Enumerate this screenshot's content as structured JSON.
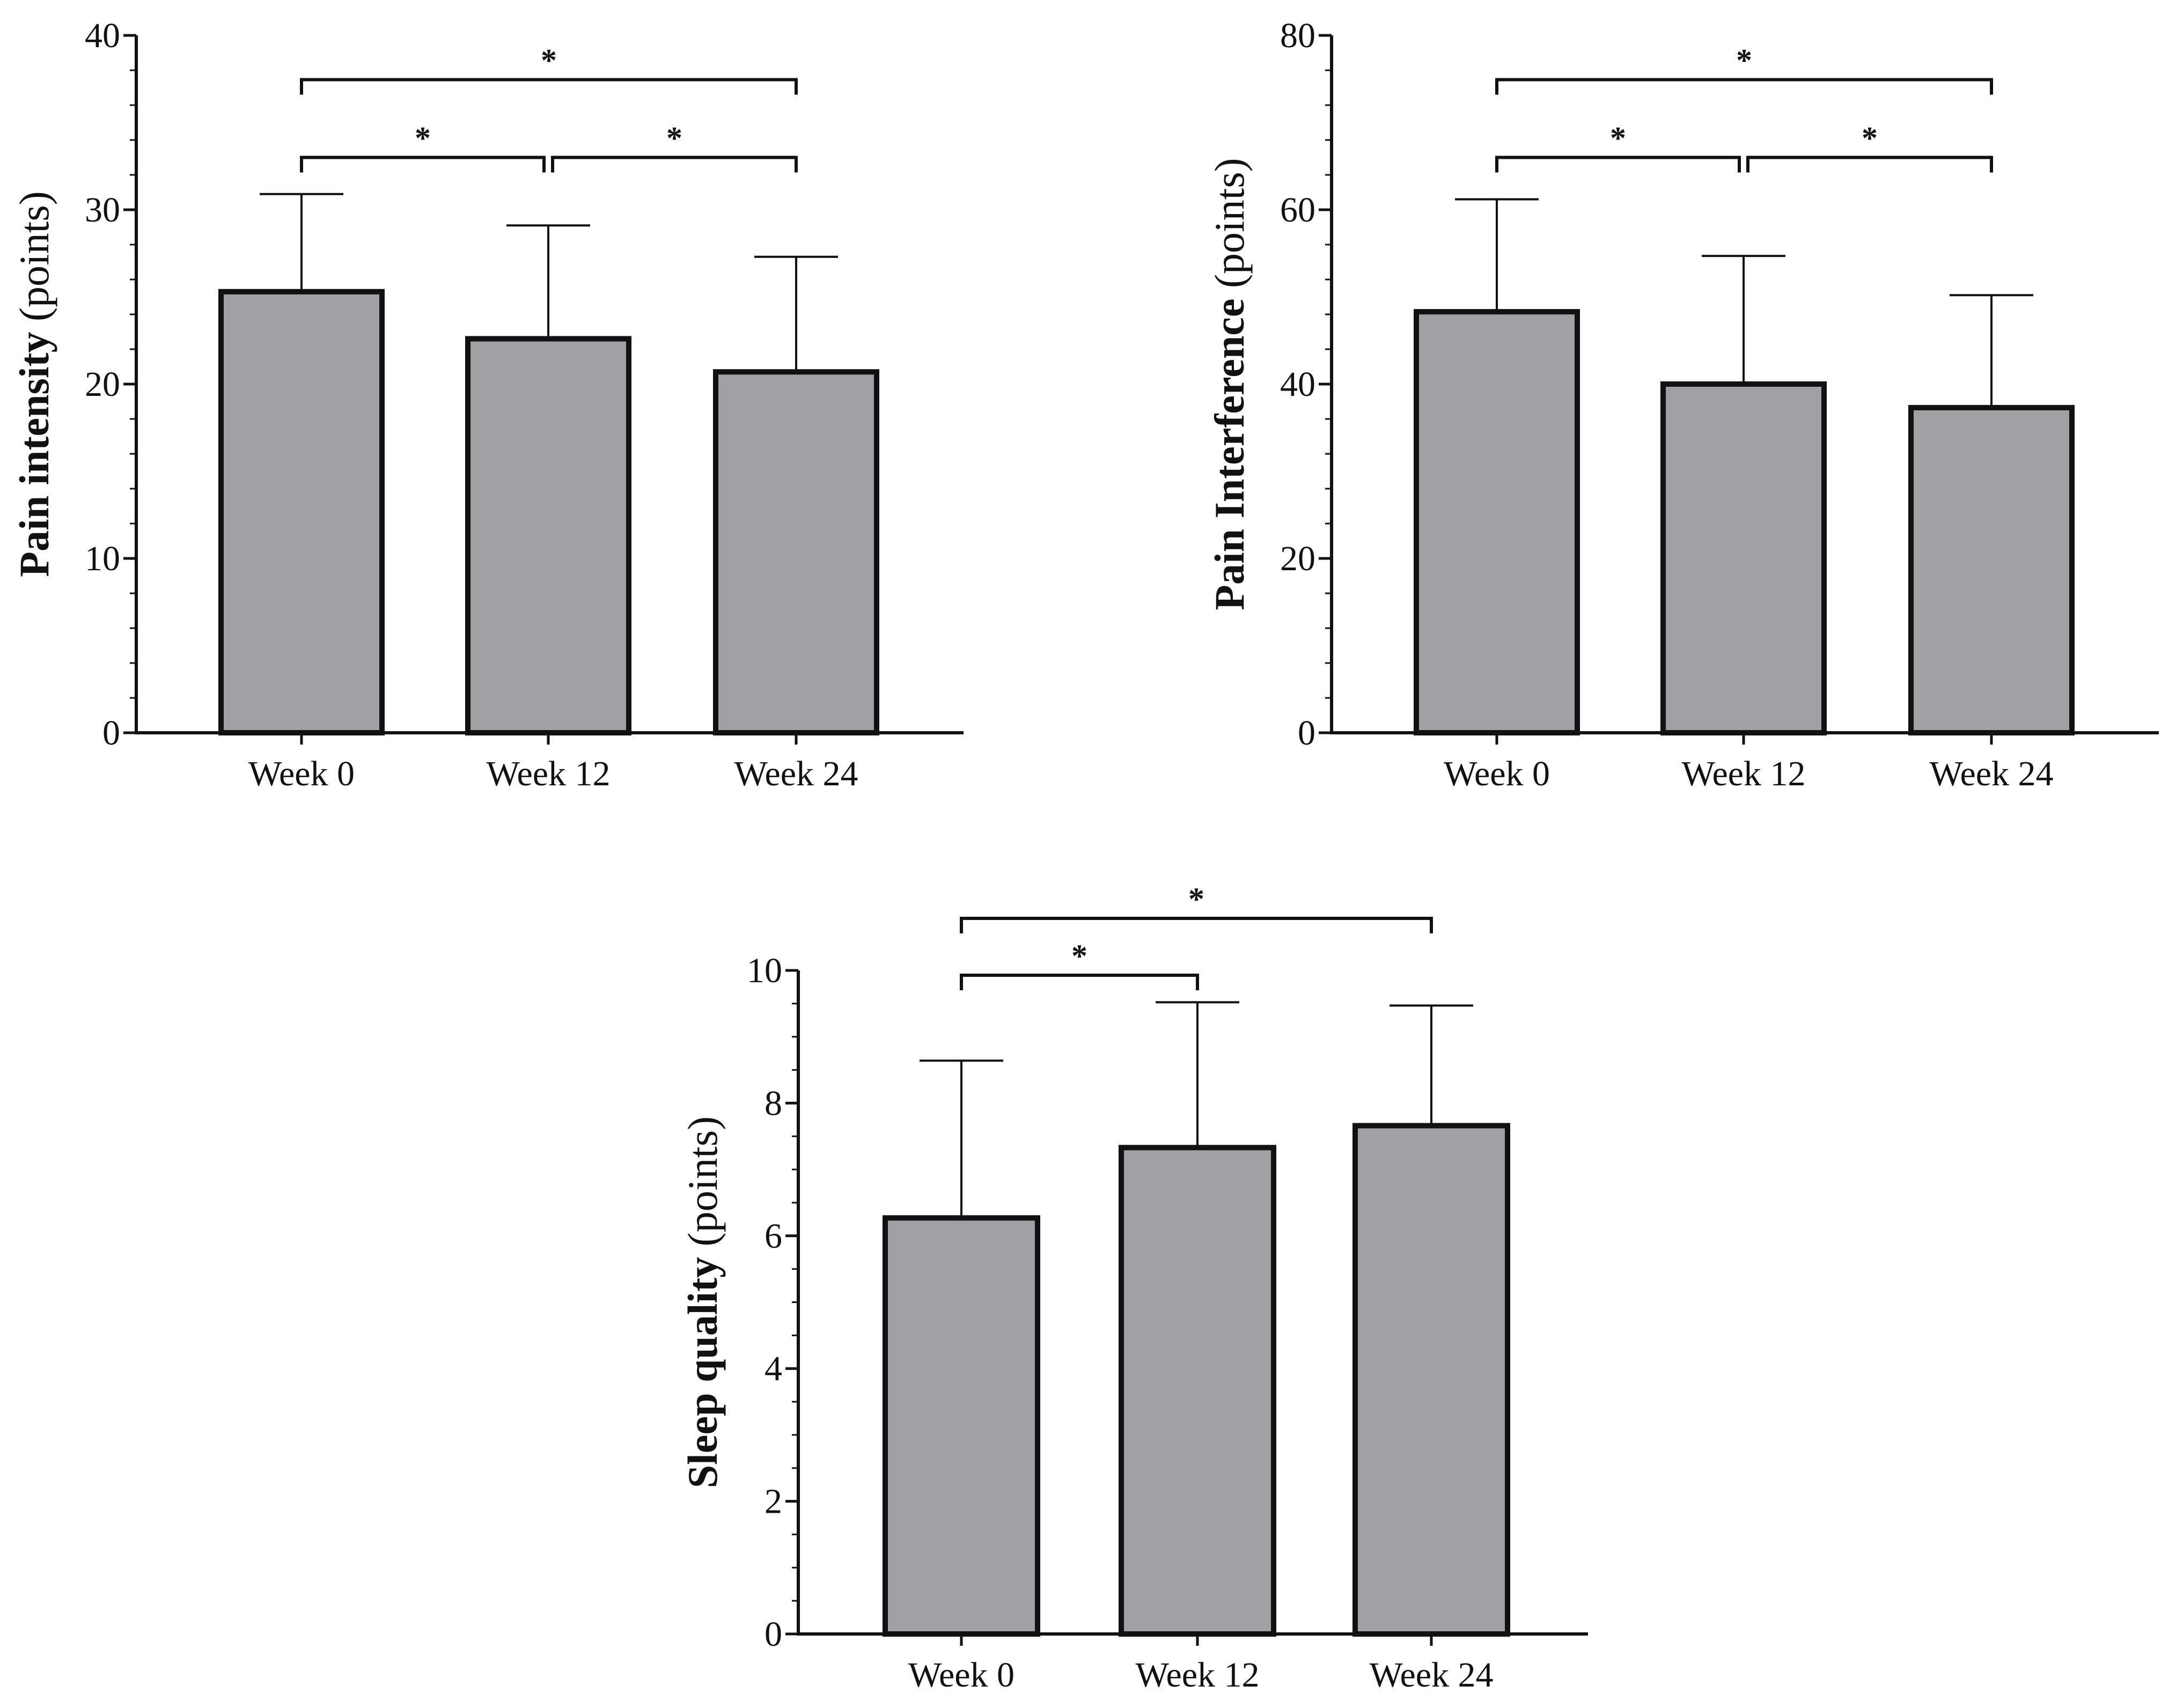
{
  "colors": {
    "bar_fill": "#a09fa4",
    "stroke": "#111111",
    "background": "#ffffff"
  },
  "chart_data": [
    {
      "id": "pain-intensity",
      "type": "bar",
      "ylabel_bold": "Pain intensity",
      "ylabel_normal": "(points)",
      "categories": [
        "Week 0",
        "Week 12",
        "Week 24"
      ],
      "values": [
        25.3,
        22.6,
        20.7
      ],
      "error_plus": [
        5.6,
        6.5,
        6.6
      ],
      "ylim": [
        0,
        40
      ],
      "yticks": [
        0,
        10,
        20,
        30,
        40
      ],
      "minor_step": 2,
      "significance": [
        {
          "from": 0,
          "to": 1,
          "level": 1,
          "label": "*"
        },
        {
          "from": 1,
          "to": 2,
          "level": 1,
          "label": "*"
        },
        {
          "from": 0,
          "to": 2,
          "level": 2,
          "label": "*"
        }
      ]
    },
    {
      "id": "pain-interference",
      "type": "bar",
      "ylabel_bold": "Pain Interference",
      "ylabel_normal": "(points)",
      "categories": [
        "Week 0",
        "Week 12",
        "Week 24"
      ],
      "values": [
        48.3,
        40.0,
        37.3
      ],
      "error_plus": [
        12.9,
        14.7,
        12.9
      ],
      "ylim": [
        0,
        80
      ],
      "yticks": [
        0,
        20,
        40,
        60,
        80
      ],
      "minor_step": 4,
      "significance": [
        {
          "from": 0,
          "to": 1,
          "level": 1,
          "label": "*"
        },
        {
          "from": 1,
          "to": 2,
          "level": 1,
          "label": "*"
        },
        {
          "from": 0,
          "to": 2,
          "level": 2,
          "label": "*"
        }
      ]
    },
    {
      "id": "sleep-quality",
      "type": "bar",
      "ylabel_bold": "Sleep quality",
      "ylabel_normal": "(points)",
      "categories": [
        "Week 0",
        "Week 12",
        "Week 24"
      ],
      "values": [
        6.27,
        7.33,
        7.66
      ],
      "error_plus": [
        2.37,
        2.19,
        1.81
      ],
      "ylim": [
        0,
        10
      ],
      "yticks": [
        0,
        2,
        4,
        6,
        8,
        10
      ],
      "minor_step": 0.5,
      "significance": [
        {
          "from": 0,
          "to": 1,
          "level": 1,
          "label": "*"
        },
        {
          "from": 0,
          "to": 2,
          "level": 2,
          "label": "*"
        }
      ]
    }
  ]
}
